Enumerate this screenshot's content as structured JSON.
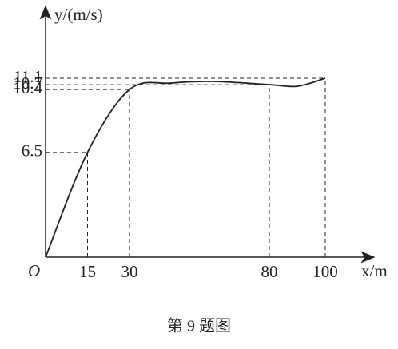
{
  "chart_data": {
    "type": "line",
    "x_label": "x/m",
    "y_label": "y/(m/s)",
    "origin": "O",
    "caption": "第 9 题图",
    "x": [
      0,
      15,
      30,
      45,
      60,
      80,
      90,
      100
    ],
    "values": [
      0,
      6.5,
      10.4,
      10.8,
      10.9,
      10.7,
      10.6,
      11.1
    ],
    "color": "#222222",
    "xlim": [
      0,
      115
    ],
    "ylim": [
      0,
      15.5
    ],
    "xticks": [
      15,
      30,
      80,
      100
    ],
    "yticks": [
      6.5,
      10.4,
      10.7,
      11.1
    ]
  }
}
